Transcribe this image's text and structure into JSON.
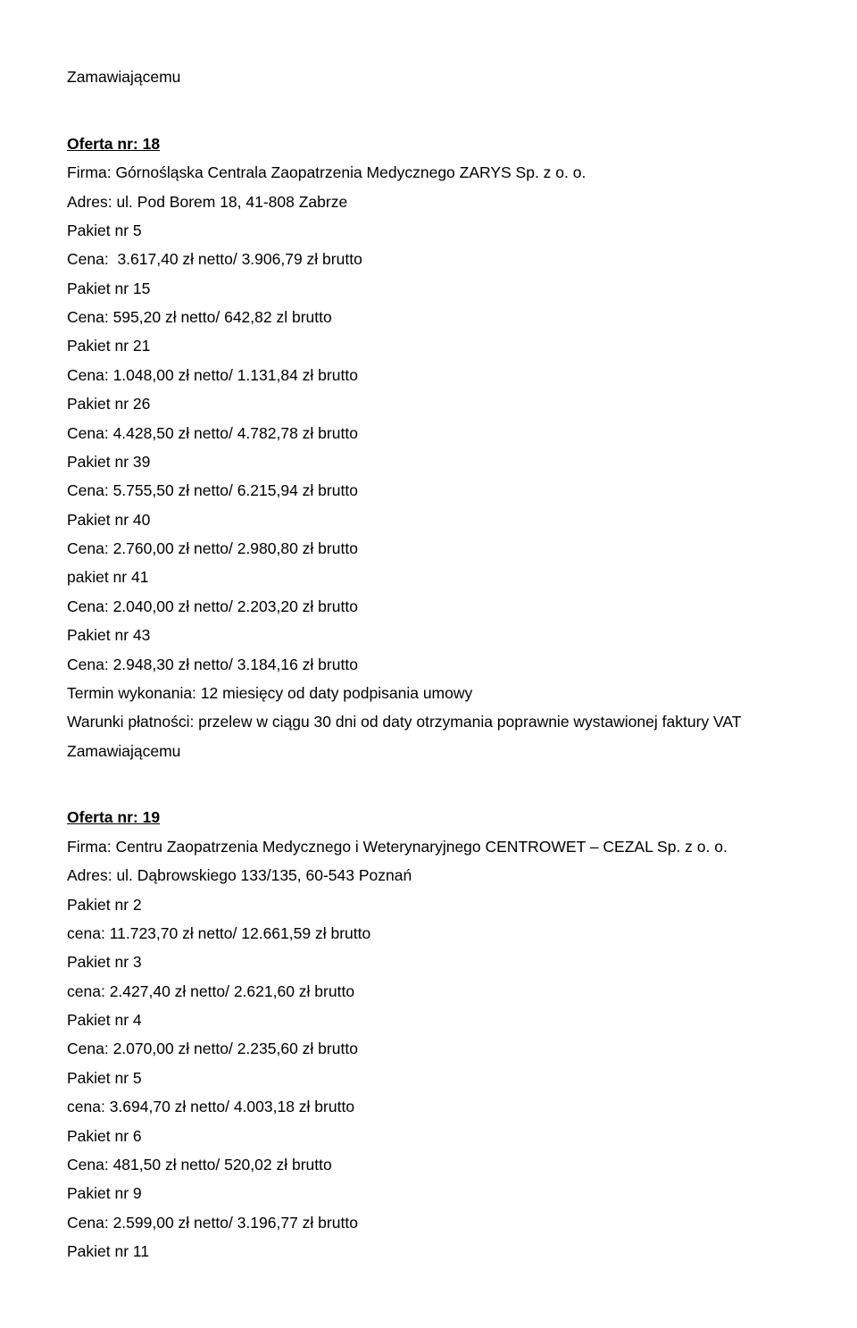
{
  "top_trailing": "Zamawiającemu",
  "offers": [
    {
      "heading": "Oferta nr: 18",
      "lines": [
        {
          "text": "Firma: Górnośląska Centrala Zaopatrzenia Medycznego ZARYS Sp. z o. o."
        },
        {
          "text": "Adres: ul. Pod Borem 18, 41-808 Zabrze"
        },
        {
          "text": "Pakiet nr 5"
        },
        {
          "prefix": "Cena:  ",
          "text": "3.617,40 zł netto/  3.906,79 zł brutto"
        },
        {
          "text": "Pakiet nr 15"
        },
        {
          "prefix": "Cena: ",
          "text": "595,20 zł netto/ 642,82 zl brutto"
        },
        {
          "text": "Pakiet nr 21"
        },
        {
          "prefix": "Cena: ",
          "text": "1.048,00 zł netto/ 1.131,84 zł brutto"
        },
        {
          "text": "Pakiet nr 26"
        },
        {
          "prefix": "Cena: ",
          "text": "4.428,50 zł netto/ 4.782,78 zł brutto"
        },
        {
          "text": "Pakiet nr 39"
        },
        {
          "prefix": "Cena: ",
          "text": "5.755,50 zł netto/ 6.215,94 zł brutto"
        },
        {
          "text": "Pakiet nr 40"
        },
        {
          "prefix": "Cena: ",
          "text": "2.760,00 zł netto/ 2.980,80 zł brutto"
        },
        {
          "text": "pakiet nr 41"
        },
        {
          "prefix": "Cena: ",
          "text": "2.040,00 zł netto/ 2.203,20 zł brutto"
        },
        {
          "text": "Pakiet nr 43"
        },
        {
          "prefix": "Cena: ",
          "text": "2.948,30 zł netto/ 3.184,16 zł brutto"
        },
        {
          "text": "Termin wykonania: 12 miesięcy od daty podpisania umowy"
        },
        {
          "text": "Warunki płatności:  przelew w ciągu 30 dni od daty otrzymania poprawnie wystawionej faktury VAT Zamawiającemu"
        }
      ]
    },
    {
      "heading": "Oferta nr: 19",
      "lines": [
        {
          "text": "Firma: Centru Zaopatrzenia Medycznego i Weterynaryjnego CENTROWET – CEZAL Sp. z o. o."
        },
        {
          "text": "Adres: ul. Dąbrowskiego 133/135, 60-543 Poznań"
        },
        {
          "text": "Pakiet nr 2"
        },
        {
          "prefix": "cena: ",
          "text": "11.723,70 zł netto/ 12.661,59 zł brutto"
        },
        {
          "text": "Pakiet nr 3"
        },
        {
          "prefix": "cena: ",
          "text": "2.427,40 zł netto/ 2.621,60 zł brutto"
        },
        {
          "text": "Pakiet nr 4"
        },
        {
          "prefix": "Cena: ",
          "text": "2.070,00 zł netto/ 2.235,60 zł brutto"
        },
        {
          "text": "Pakiet nr 5"
        },
        {
          "prefix": "cena: ",
          "text": "3.694,70 zł netto/ 4.003,18 zł brutto"
        },
        {
          "text": "Pakiet nr 6"
        },
        {
          "prefix": "Cena: ",
          "text": "481,50 zł netto/ 520,02 zł brutto"
        },
        {
          "text": "Pakiet nr 9"
        },
        {
          "prefix": "Cena: ",
          "text": "2.599,00 zł netto/ 3.196,77 zł brutto"
        },
        {
          "text": "Pakiet nr 11"
        }
      ]
    }
  ]
}
